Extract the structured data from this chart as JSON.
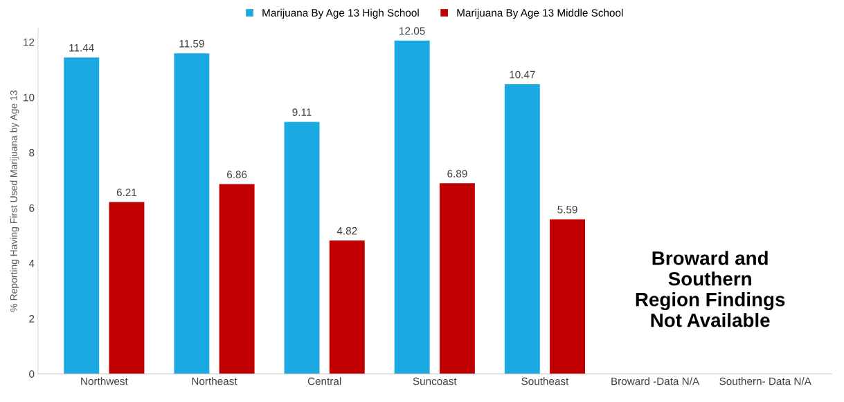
{
  "chart_data": {
    "type": "bar",
    "categories": [
      "Northwest",
      "Northeast",
      "Central",
      "Suncoast",
      "Southeast",
      "Broward -Data N/A",
      "Southern- Data N/A"
    ],
    "series": [
      {
        "name": "Marijuana By Age 13 High School",
        "color": "#1ba9e1",
        "values": [
          11.44,
          11.59,
          9.11,
          12.05,
          10.47,
          null,
          null
        ]
      },
      {
        "name": "Marijuana By Age 13 Middle School",
        "color": "#c00000",
        "values": [
          6.21,
          6.86,
          4.82,
          6.89,
          5.59,
          null,
          null
        ]
      }
    ],
    "ylabel": "% Reporting Having First Used Marijuana by Age 13",
    "ylim": [
      0,
      12.5
    ],
    "yticks": [
      0,
      2,
      4,
      6,
      8,
      10,
      12
    ],
    "data_labels": true,
    "legend": "top",
    "grid": false,
    "annotations": [
      "Broward and\nSouthern\nRegion Findings\nNot Available"
    ]
  }
}
